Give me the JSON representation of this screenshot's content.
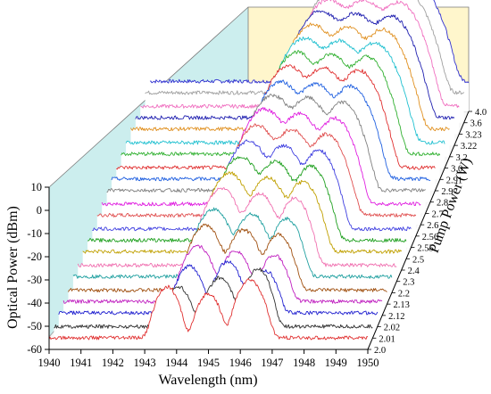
{
  "chart_data": {
    "type": "line",
    "subtype": "3d-waterfall",
    "title": "",
    "xlabel": "Wavelength (nm)",
    "ylabel": "Optical Power (dBm)",
    "zlabel": "Pump Power (W)",
    "xlim": [
      1940,
      1950
    ],
    "ylim": [
      -60,
      10
    ],
    "x_ticks": [
      "1940",
      "1941",
      "1942",
      "1943",
      "1944",
      "1945",
      "1946",
      "1947",
      "1948",
      "1949",
      "1950"
    ],
    "y_ticks": [
      "-60",
      "-50",
      "-40",
      "-30",
      "-20",
      "-10",
      "0",
      "10"
    ],
    "series": [
      {
        "name": "2.0",
        "color": "#e03030",
        "noise": -55,
        "peaks": [
          [
            1943.7,
            -33,
            0.2
          ],
          [
            1945.0,
            -36,
            0.2
          ],
          [
            1946.3,
            -30,
            0.22
          ]
        ]
      },
      {
        "name": "2.01",
        "color": "#303030",
        "noise": -55,
        "peaks": [
          [
            1943.9,
            -38,
            0.22
          ],
          [
            1945.2,
            -34,
            0.22
          ],
          [
            1946.4,
            -30,
            0.2
          ]
        ]
      },
      {
        "name": "2.02",
        "color": "#2020d0",
        "noise": -54,
        "peaks": [
          [
            1944.1,
            -34,
            0.22
          ],
          [
            1945.3,
            -32,
            0.22
          ],
          [
            1946.5,
            -36,
            0.2
          ]
        ]
      },
      {
        "name": "2.12",
        "color": "#c020c0",
        "noise": -54,
        "peaks": [
          [
            1944.2,
            -30,
            0.24
          ],
          [
            1945.4,
            -32,
            0.22
          ],
          [
            1946.6,
            -34,
            0.22
          ]
        ]
      },
      {
        "name": "2.13",
        "color": "#a05010",
        "noise": -54,
        "peaks": [
          [
            1944.3,
            -26,
            0.24
          ],
          [
            1945.5,
            -28,
            0.24
          ],
          [
            1946.6,
            -30,
            0.22
          ]
        ]
      },
      {
        "name": "2.2",
        "color": "#20a0a0",
        "noise": -53,
        "peaks": [
          [
            1944.4,
            -24,
            0.26
          ],
          [
            1945.6,
            -26,
            0.24
          ],
          [
            1946.7,
            -28,
            0.22
          ]
        ]
      },
      {
        "name": "2.3",
        "color": "#f070b0",
        "noise": -53,
        "peaks": [
          [
            1944.5,
            -20,
            0.26
          ],
          [
            1945.7,
            -22,
            0.24
          ],
          [
            1946.8,
            -24,
            0.22
          ]
        ]
      },
      {
        "name": "2.4",
        "color": "#c0a000",
        "noise": -52,
        "peaks": [
          [
            1944.6,
            -18,
            0.26
          ],
          [
            1945.8,
            -20,
            0.26
          ],
          [
            1946.9,
            -22,
            0.24
          ]
        ]
      },
      {
        "name": "2.5",
        "color": "#20a020",
        "noise": -52,
        "peaks": [
          [
            1944.8,
            -16,
            0.28
          ],
          [
            1945.9,
            -18,
            0.26
          ],
          [
            1947.0,
            -20,
            0.24
          ]
        ]
      },
      {
        "name": "2.55",
        "color": "#4040e0",
        "noise": -52,
        "peaks": [
          [
            1944.9,
            -14,
            0.28
          ],
          [
            1946.0,
            -16,
            0.26
          ],
          [
            1947.1,
            -18,
            0.24
          ]
        ]
      },
      {
        "name": "2.56",
        "color": "#e05050",
        "noise": -51,
        "peaks": [
          [
            1945.0,
            -12,
            0.28
          ],
          [
            1946.1,
            -14,
            0.28
          ],
          [
            1947.2,
            -16,
            0.26
          ]
        ]
      },
      {
        "name": "2.6",
        "color": "#e020e0",
        "noise": -51,
        "peaks": [
          [
            1945.1,
            -10,
            0.3
          ],
          [
            1946.2,
            -12,
            0.28
          ],
          [
            1947.3,
            -14,
            0.26
          ]
        ]
      },
      {
        "name": "2.7",
        "color": "#808080",
        "noise": -50,
        "peaks": [
          [
            1945.2,
            -9,
            0.3
          ],
          [
            1946.3,
            -10,
            0.28
          ],
          [
            1947.4,
            -12,
            0.26
          ]
        ]
      },
      {
        "name": "2.8",
        "color": "#2060e0",
        "noise": -50,
        "peaks": [
          [
            1945.3,
            -8,
            0.3
          ],
          [
            1946.4,
            -9,
            0.3
          ],
          [
            1947.5,
            -10,
            0.28
          ]
        ]
      },
      {
        "name": "2.9",
        "color": "#e03030",
        "noise": -50,
        "peaks": [
          [
            1945.4,
            -6,
            0.3
          ],
          [
            1946.5,
            -7,
            0.3
          ],
          [
            1947.6,
            -8,
            0.28
          ]
        ]
      },
      {
        "name": "2.91",
        "color": "#30b030",
        "noise": -49,
        "peaks": [
          [
            1945.5,
            -5,
            0.3
          ],
          [
            1946.6,
            -6,
            0.3
          ],
          [
            1947.7,
            -7,
            0.28
          ]
        ]
      },
      {
        "name": "3.0",
        "color": "#20c0d0",
        "noise": -49,
        "peaks": [
          [
            1945.6,
            -4,
            0.32
          ],
          [
            1946.7,
            -5,
            0.3
          ],
          [
            1947.8,
            -6,
            0.3
          ]
        ]
      },
      {
        "name": "3.2",
        "color": "#e09020",
        "noise": -48,
        "peaks": [
          [
            1945.7,
            -3,
            0.32
          ],
          [
            1946.8,
            -4,
            0.3
          ],
          [
            1947.9,
            -5,
            0.3
          ]
        ]
      },
      {
        "name": "3.22",
        "color": "#2020b0",
        "noise": -48,
        "peaks": [
          [
            1945.8,
            -2,
            0.32
          ],
          [
            1946.9,
            -3,
            0.32
          ],
          [
            1948.0,
            -4,
            0.3
          ]
        ]
      },
      {
        "name": "3.23",
        "color": "#f070c0",
        "noise": -48,
        "peaks": [
          [
            1945.9,
            -2,
            0.32
          ],
          [
            1947.0,
            -2,
            0.32
          ],
          [
            1948.1,
            -3,
            0.3
          ]
        ]
      },
      {
        "name": "3.6",
        "color": "#a0a0a0",
        "noise": -47,
        "peaks": [
          [
            1946.0,
            -1,
            0.34
          ],
          [
            1947.1,
            0,
            0.32
          ],
          [
            1948.2,
            -4,
            0.3
          ]
        ]
      },
      {
        "name": "4.0",
        "color": "#3030d0",
        "noise": -47,
        "peaks": [
          [
            1946.2,
            2,
            0.36
          ],
          [
            1947.3,
            1,
            0.34
          ],
          [
            1948.4,
            -6,
            0.3
          ]
        ]
      }
    ]
  }
}
